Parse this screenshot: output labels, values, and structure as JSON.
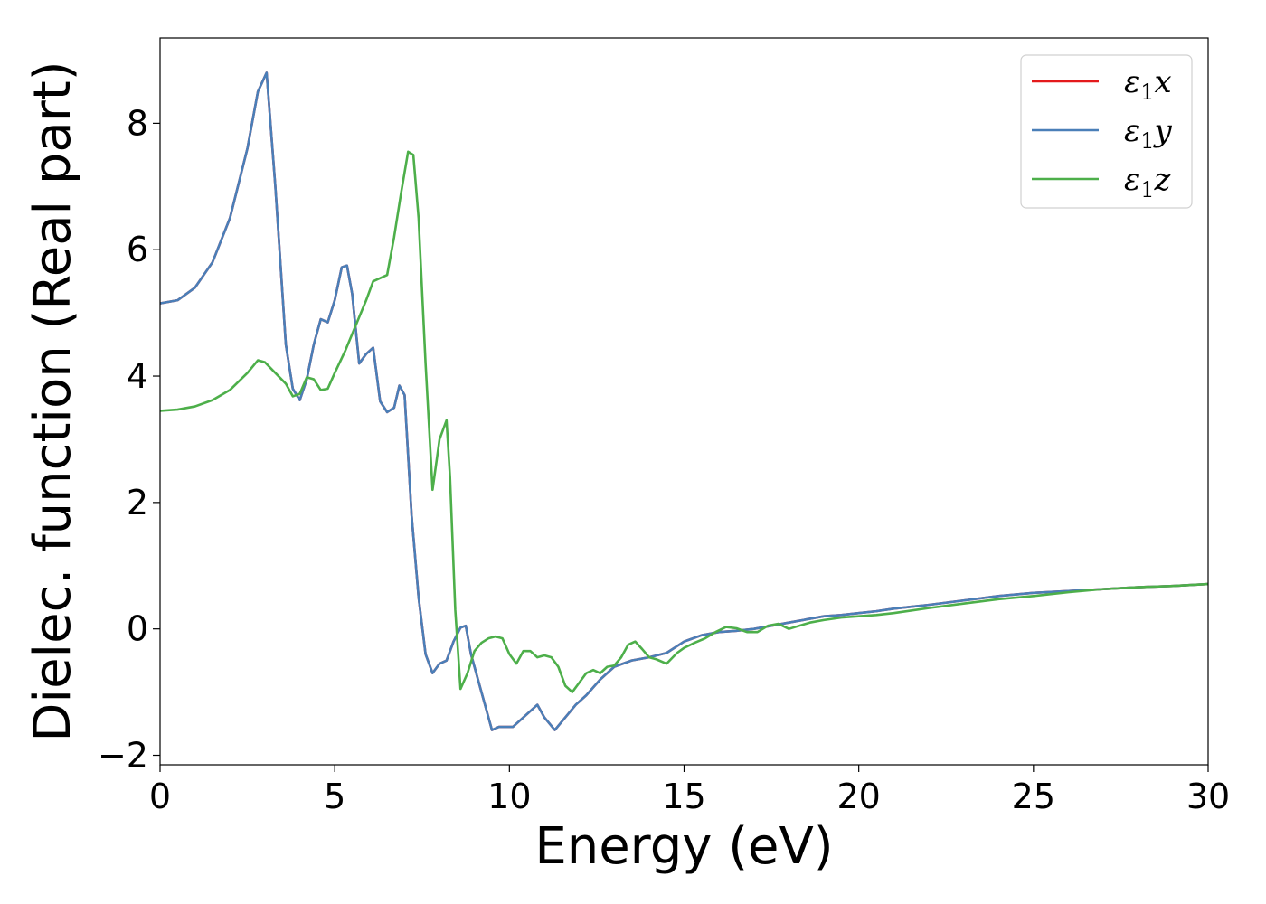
{
  "chart_data": {
    "type": "line",
    "title": "",
    "xlabel": "Energy (eV)",
    "ylabel": "Dielec. function (Real part)",
    "xlim": [
      0,
      30
    ],
    "ylim": [
      -2.15,
      9.35
    ],
    "xticks": [
      0,
      5,
      10,
      15,
      20,
      25,
      30
    ],
    "xtick_labels": [
      "0",
      "5",
      "10",
      "15",
      "20",
      "25",
      "30"
    ],
    "yticks": [
      -2,
      0,
      2,
      4,
      6,
      8
    ],
    "ytick_labels": [
      "−2",
      "0",
      "2",
      "4",
      "6",
      "8"
    ],
    "grid": false,
    "legend_position": "top-right",
    "series": [
      {
        "name": "ε1x",
        "legend_main": "ε",
        "legend_sub": "1",
        "legend_tail": "x",
        "color": "#e41a1c",
        "x": [
          0,
          0.5,
          1.0,
          1.5,
          2.0,
          2.5,
          2.8,
          3.05,
          3.3,
          3.6,
          3.8,
          4.0,
          4.2,
          4.4,
          4.6,
          4.8,
          5.0,
          5.2,
          5.35,
          5.5,
          5.7,
          5.9,
          6.1,
          6.3,
          6.5,
          6.7,
          6.85,
          7.0,
          7.2,
          7.4,
          7.6,
          7.8,
          8.0,
          8.2,
          8.4,
          8.6,
          8.75,
          8.9,
          9.1,
          9.3,
          9.5,
          9.7,
          9.9,
          10.1,
          10.4,
          10.8,
          11.0,
          11.3,
          11.6,
          11.9,
          12.2,
          12.6,
          13.0,
          13.5,
          14.0,
          14.5,
          15.0,
          15.5,
          16.0,
          16.5,
          17.0,
          17.5,
          18.0,
          18.5,
          19.0,
          19.5,
          20.0,
          20.5,
          21.0,
          21.5,
          22.0,
          23.0,
          24.0,
          25.0,
          26.0,
          27.0,
          28.0,
          29.0,
          30.0
        ],
        "y": [
          5.15,
          5.2,
          5.4,
          5.8,
          6.5,
          7.6,
          8.5,
          8.8,
          7.0,
          4.5,
          3.8,
          3.62,
          3.95,
          4.5,
          4.9,
          4.85,
          5.2,
          5.72,
          5.75,
          5.3,
          4.2,
          4.35,
          4.45,
          3.6,
          3.43,
          3.5,
          3.85,
          3.7,
          1.8,
          0.5,
          -0.4,
          -0.7,
          -0.55,
          -0.5,
          -0.2,
          0.02,
          0.05,
          -0.4,
          -0.8,
          -1.2,
          -1.6,
          -1.55,
          -1.55,
          -1.55,
          -1.4,
          -1.2,
          -1.4,
          -1.6,
          -1.4,
          -1.2,
          -1.05,
          -0.8,
          -0.6,
          -0.5,
          -0.45,
          -0.38,
          -0.2,
          -0.1,
          -0.05,
          -0.03,
          0.0,
          0.05,
          0.1,
          0.15,
          0.2,
          0.22,
          0.25,
          0.28,
          0.32,
          0.35,
          0.38,
          0.45,
          0.52,
          0.57,
          0.6,
          0.63,
          0.66,
          0.68,
          0.71
        ]
      },
      {
        "name": "ε1y",
        "legend_main": "ε",
        "legend_sub": "1",
        "legend_tail": "y",
        "color": "#4a7fb8",
        "x": [
          0,
          0.5,
          1.0,
          1.5,
          2.0,
          2.5,
          2.8,
          3.05,
          3.3,
          3.6,
          3.8,
          4.0,
          4.2,
          4.4,
          4.6,
          4.8,
          5.0,
          5.2,
          5.35,
          5.5,
          5.7,
          5.9,
          6.1,
          6.3,
          6.5,
          6.7,
          6.85,
          7.0,
          7.2,
          7.4,
          7.6,
          7.8,
          8.0,
          8.2,
          8.4,
          8.6,
          8.75,
          8.9,
          9.1,
          9.3,
          9.5,
          9.7,
          9.9,
          10.1,
          10.4,
          10.8,
          11.0,
          11.3,
          11.6,
          11.9,
          12.2,
          12.6,
          13.0,
          13.5,
          14.0,
          14.5,
          15.0,
          15.5,
          16.0,
          16.5,
          17.0,
          17.5,
          18.0,
          18.5,
          19.0,
          19.5,
          20.0,
          20.5,
          21.0,
          21.5,
          22.0,
          23.0,
          24.0,
          25.0,
          26.0,
          27.0,
          28.0,
          29.0,
          30.0
        ],
        "y": [
          5.15,
          5.2,
          5.4,
          5.8,
          6.5,
          7.6,
          8.5,
          8.8,
          7.0,
          4.5,
          3.8,
          3.62,
          3.95,
          4.5,
          4.9,
          4.85,
          5.2,
          5.72,
          5.75,
          5.3,
          4.2,
          4.35,
          4.45,
          3.6,
          3.43,
          3.5,
          3.85,
          3.7,
          1.8,
          0.5,
          -0.4,
          -0.7,
          -0.55,
          -0.5,
          -0.2,
          0.02,
          0.05,
          -0.4,
          -0.8,
          -1.2,
          -1.6,
          -1.55,
          -1.55,
          -1.55,
          -1.4,
          -1.2,
          -1.4,
          -1.6,
          -1.4,
          -1.2,
          -1.05,
          -0.8,
          -0.6,
          -0.5,
          -0.45,
          -0.38,
          -0.2,
          -0.1,
          -0.05,
          -0.03,
          0.0,
          0.05,
          0.1,
          0.15,
          0.2,
          0.22,
          0.25,
          0.28,
          0.32,
          0.35,
          0.38,
          0.45,
          0.52,
          0.57,
          0.6,
          0.63,
          0.66,
          0.68,
          0.71
        ]
      },
      {
        "name": "ε1z",
        "legend_main": "ε",
        "legend_sub": "1",
        "legend_tail": "z",
        "color": "#4daf4a",
        "x": [
          0,
          0.5,
          1.0,
          1.5,
          2.0,
          2.5,
          2.8,
          3.0,
          3.3,
          3.6,
          3.8,
          4.0,
          4.2,
          4.4,
          4.6,
          4.8,
          5.0,
          5.3,
          5.6,
          5.9,
          6.1,
          6.3,
          6.5,
          6.7,
          6.9,
          7.1,
          7.25,
          7.4,
          7.6,
          7.8,
          8.0,
          8.2,
          8.3,
          8.45,
          8.6,
          8.8,
          9.0,
          9.2,
          9.4,
          9.6,
          9.8,
          10.0,
          10.2,
          10.4,
          10.6,
          10.8,
          11.0,
          11.2,
          11.4,
          11.6,
          11.8,
          12.0,
          12.2,
          12.4,
          12.6,
          12.8,
          13.0,
          13.2,
          13.4,
          13.6,
          13.8,
          14.0,
          14.2,
          14.5,
          14.8,
          15.0,
          15.3,
          15.6,
          15.9,
          16.2,
          16.5,
          16.8,
          17.1,
          17.4,
          17.7,
          18.0,
          18.3,
          18.6,
          19.0,
          19.5,
          20.0,
          20.5,
          21.0,
          22.0,
          23.0,
          24.0,
          25.0,
          26.0,
          27.0,
          28.0,
          29.0,
          30.0
        ],
        "y": [
          3.45,
          3.47,
          3.52,
          3.62,
          3.78,
          4.05,
          4.25,
          4.22,
          4.05,
          3.88,
          3.68,
          3.72,
          3.98,
          3.95,
          3.78,
          3.8,
          4.05,
          4.4,
          4.8,
          5.2,
          5.5,
          5.55,
          5.6,
          6.2,
          6.9,
          7.55,
          7.5,
          6.5,
          4.2,
          2.2,
          3.0,
          3.3,
          2.4,
          0.3,
          -0.95,
          -0.7,
          -0.35,
          -0.22,
          -0.15,
          -0.12,
          -0.15,
          -0.4,
          -0.55,
          -0.35,
          -0.35,
          -0.45,
          -0.42,
          -0.45,
          -0.6,
          -0.9,
          -1.0,
          -0.85,
          -0.7,
          -0.65,
          -0.7,
          -0.6,
          -0.58,
          -0.45,
          -0.25,
          -0.2,
          -0.32,
          -0.45,
          -0.48,
          -0.55,
          -0.38,
          -0.3,
          -0.22,
          -0.15,
          -0.05,
          0.03,
          0.01,
          -0.05,
          -0.05,
          0.05,
          0.08,
          0.0,
          0.05,
          0.1,
          0.14,
          0.18,
          0.2,
          0.22,
          0.25,
          0.33,
          0.4,
          0.47,
          0.52,
          0.58,
          0.63,
          0.66,
          0.68,
          0.71
        ]
      }
    ]
  }
}
